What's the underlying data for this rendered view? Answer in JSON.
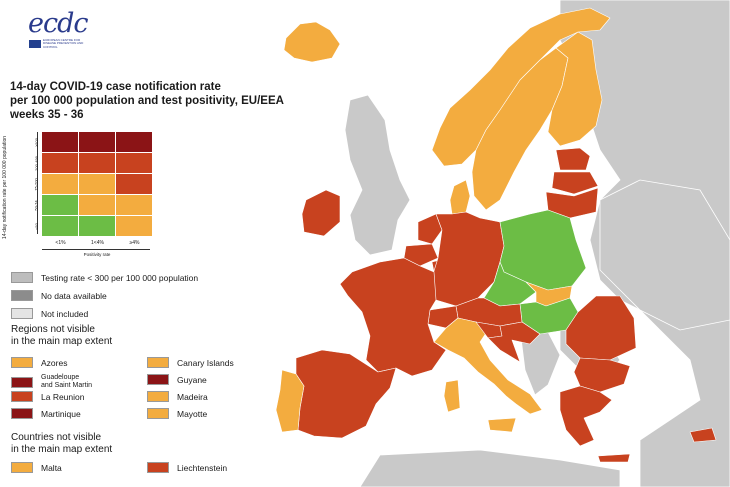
{
  "colors": {
    "dark_red": "#8b1416",
    "red": "#c8421f",
    "orange": "#f3ac3f",
    "green": "#6cbd45",
    "grey_testing": "#bdbdbd",
    "grey_nodata": "#8c8c8c",
    "grey_not_included": "#e4e4e4",
    "sea": "#ffffff",
    "non_eu": "#c9c9c9"
  },
  "logo": {
    "wordmark": "ecdc",
    "subtitle": "EUROPEAN CENTRE FOR DISEASE PREVENTION AND CONTROL"
  },
  "title": {
    "line1": "14-day COVID-19 case notification rate",
    "line2": "per 100 000 population and test positivity, EU/EEA",
    "line3": "weeks 35 - 36"
  },
  "matrix": {
    "y_axis_label": "14-day notification rate per 100 000 population",
    "x_axis_label": "Positivity rate",
    "rows": [
      {
        "label": "≥500",
        "cells": [
          "dark_red",
          "dark_red",
          "dark_red"
        ]
      },
      {
        "label": "200-499",
        "cells": [
          "red",
          "red",
          "red"
        ]
      },
      {
        "label": "75-200",
        "cells": [
          "orange",
          "orange",
          "red"
        ]
      },
      {
        "label": "50-74",
        "cells": [
          "green",
          "orange",
          "orange"
        ]
      },
      {
        "label": "<50",
        "cells": [
          "green",
          "green",
          "orange"
        ]
      }
    ],
    "columns": [
      "<1%",
      "1<4%",
      "≥4%"
    ]
  },
  "legend": {
    "testing": "Testing rate < 300 per 100 000 population",
    "no_data": "No data available",
    "not_included": "Not included",
    "regions_heading_1": "Regions not visible",
    "regions_heading_2": "in the main map extent",
    "regions": [
      {
        "name": "Azores",
        "color": "orange"
      },
      {
        "name": "Canary Islands",
        "color": "orange"
      },
      {
        "name": "Guadeloupe\nand Saint Martin",
        "color": "dark_red"
      },
      {
        "name": "Guyane",
        "color": "dark_red"
      },
      {
        "name": "La Reunion",
        "color": "red"
      },
      {
        "name": "Madeira",
        "color": "orange"
      },
      {
        "name": "Martinique",
        "color": "dark_red"
      },
      {
        "name": "Mayotte",
        "color": "orange"
      }
    ],
    "countries_heading_1": "Countries not visible",
    "countries_heading_2": "in the main map extent",
    "countries": [
      {
        "name": "Malta",
        "color": "orange"
      },
      {
        "name": "Liechtenstein",
        "color": "red"
      }
    ]
  },
  "map_regions": [
    {
      "name": "Iceland",
      "color": "orange"
    },
    {
      "name": "Norway",
      "color": "orange"
    },
    {
      "name": "Sweden",
      "color": "orange"
    },
    {
      "name": "Finland",
      "color": "orange"
    },
    {
      "name": "Estonia",
      "color": "red"
    },
    {
      "name": "Latvia",
      "color": "red"
    },
    {
      "name": "Lithuania",
      "color": "red"
    },
    {
      "name": "Denmark",
      "color": "orange"
    },
    {
      "name": "Ireland",
      "color": "red"
    },
    {
      "name": "Netherlands",
      "color": "red"
    },
    {
      "name": "Belgium",
      "color": "red"
    },
    {
      "name": "Luxembourg",
      "color": "red"
    },
    {
      "name": "Germany",
      "color": "red"
    },
    {
      "name": "Poland",
      "color": "green"
    },
    {
      "name": "Czechia",
      "color": "green"
    },
    {
      "name": "Slovakia",
      "color": "orange"
    },
    {
      "name": "Hungary",
      "color": "green"
    },
    {
      "name": "Austria",
      "color": "red"
    },
    {
      "name": "Switzerland",
      "color": "red"
    },
    {
      "name": "France",
      "color": "red"
    },
    {
      "name": "Spain",
      "color": "red"
    },
    {
      "name": "Portugal",
      "color": "orange"
    },
    {
      "name": "Italy",
      "color": "orange"
    },
    {
      "name": "Slovenia",
      "color": "red"
    },
    {
      "name": "Croatia",
      "color": "red"
    },
    {
      "name": "Romania",
      "color": "red"
    },
    {
      "name": "Bulgaria",
      "color": "red"
    },
    {
      "name": "Greece",
      "color": "red"
    },
    {
      "name": "Cyprus",
      "color": "red"
    }
  ]
}
